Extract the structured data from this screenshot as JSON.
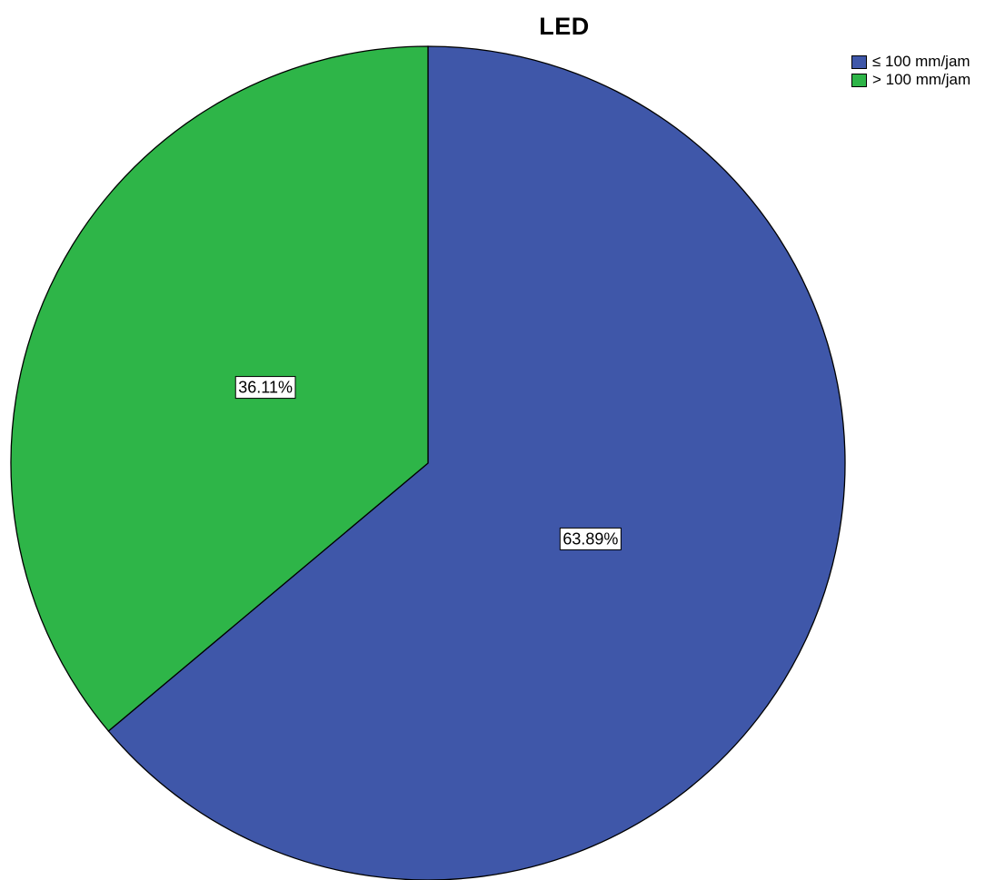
{
  "chart_data": {
    "type": "pie",
    "title": "LED",
    "legend_position": "top-right",
    "slices": [
      {
        "label": "≤ 100 mm/jam",
        "value": 63.89,
        "value_label": "63.89%",
        "color": "#3f57a9"
      },
      {
        "label": "> 100 mm/jam",
        "value": 36.11,
        "value_label": "36.11%",
        "color": "#2eb548"
      }
    ]
  }
}
